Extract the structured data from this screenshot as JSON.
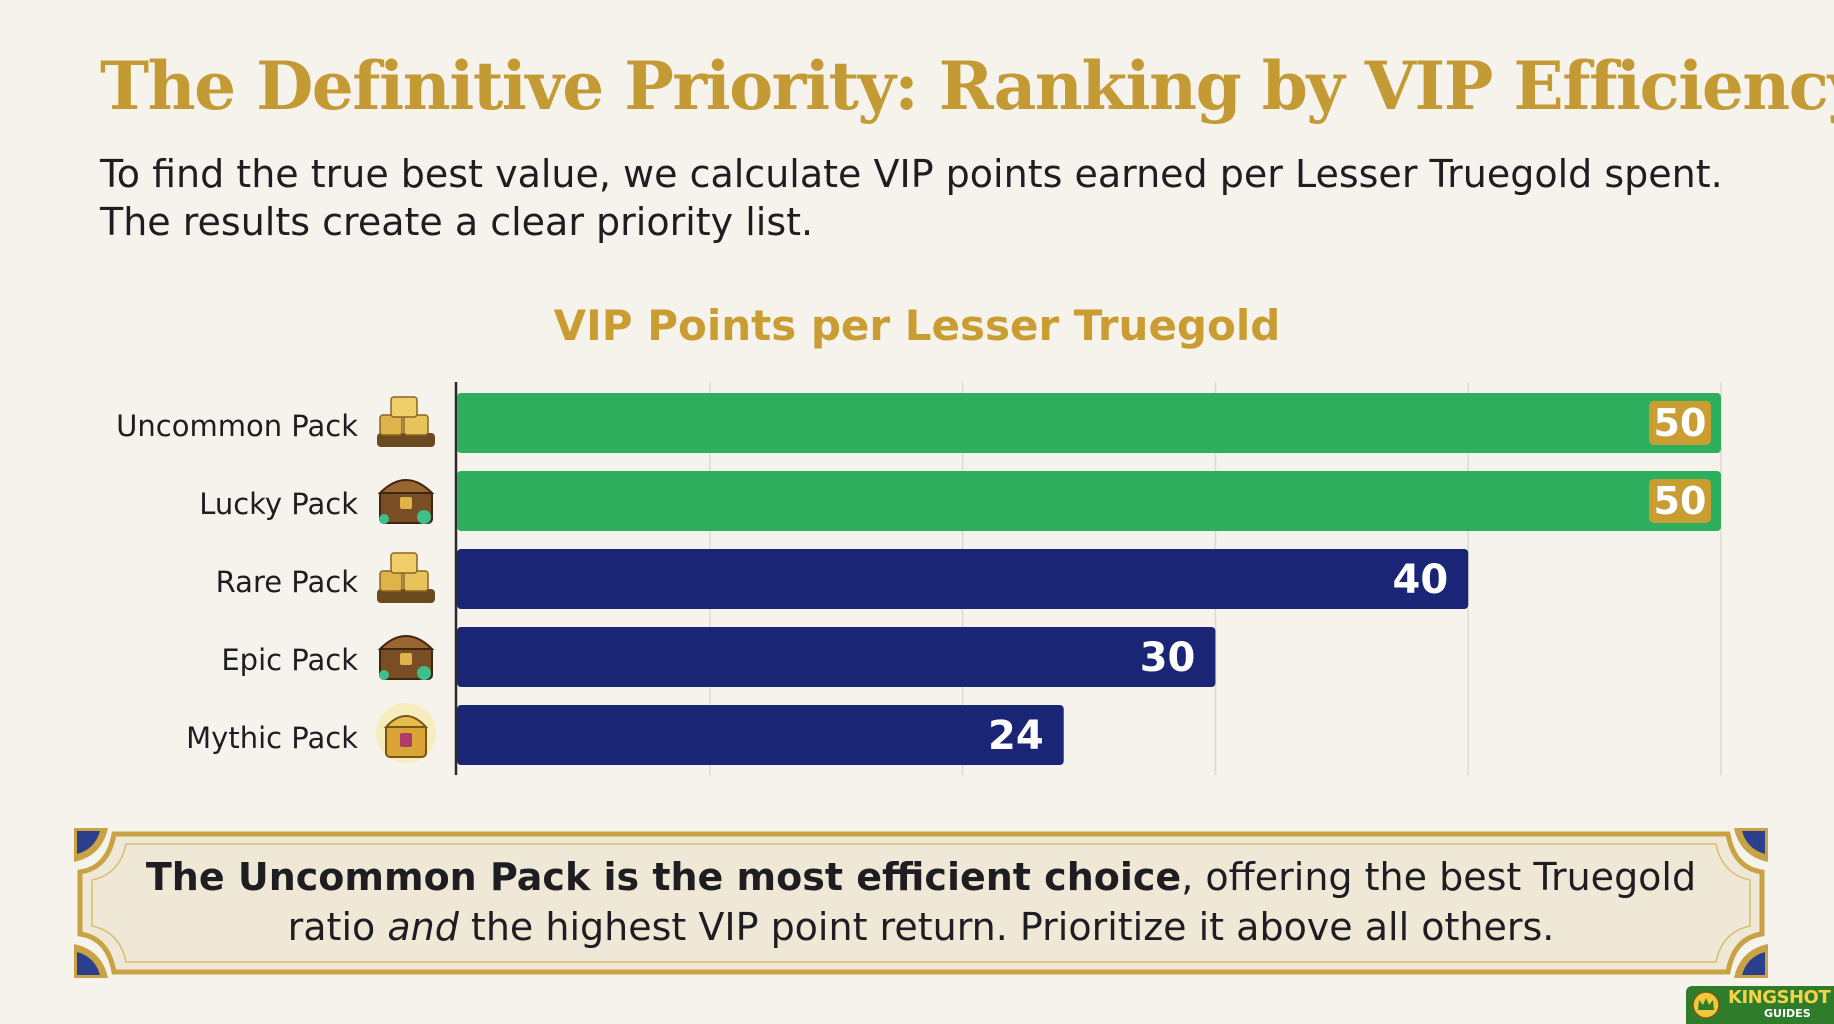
{
  "title": "The Definitive Priority: Ranking by VIP Efficiency",
  "subtitle": "To find the true best value, we calculate VIP points earned per Lesser Truegold spent. The results create a clear priority list.",
  "chart_data": {
    "type": "bar",
    "orientation": "horizontal",
    "title": "VIP Points per Lesser Truegold",
    "xlabel": "",
    "ylabel": "",
    "categories": [
      "Uncommon Pack",
      "Lucky Pack",
      "Rare Pack",
      "Epic Pack",
      "Mythic Pack"
    ],
    "values": [
      50,
      50,
      40,
      30,
      24
    ],
    "icons": [
      "gold-bars-icon",
      "treasure-chest-icon",
      "gold-bars-icon",
      "treasure-chest-icon",
      "mythic-chest-icon"
    ],
    "bar_colors": [
      "#2eaf5d",
      "#2eaf5d",
      "#1a2675",
      "#1a2675",
      "#1a2675"
    ],
    "xlim": [
      0,
      50
    ],
    "grid": true,
    "data_labels": true
  },
  "callout": {
    "bold_text": "The Uncommon Pack is the most efficient choice",
    "text_1": ", offering the best Truegold ratio ",
    "italic_text": "and",
    "text_2": " the highest VIP point return. Prioritize it above all others."
  },
  "watermark": {
    "line1": "KINGSHOT",
    "line2": "GUIDES"
  },
  "colors": {
    "title_gold": "#c49a35",
    "highlight_green": "#2eaf5d",
    "navy": "#1a2675",
    "label_badge_gold": "#c99d32",
    "frame_blue": "#2b3f8c"
  }
}
